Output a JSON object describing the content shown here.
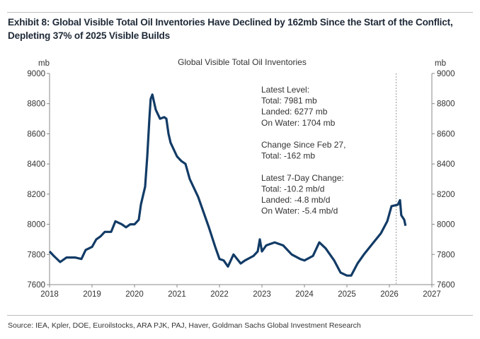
{
  "exhibit_title": "Exhibit 8: Global Visible Total Oil Inventories Have Declined by 162mb Since the Start of the Conflict, Depleting 37% of 2025 Visible Builds",
  "source": "Source: IEA, Kpler, DOE, Euroilstocks, ARA PJK, PAJ, Haver, Goldman Sachs Global Investment Research",
  "chart_data": {
    "type": "line",
    "title": "Global Visible Total Oil Inventories",
    "ylabel_left": "mb",
    "ylabel_right": "mb",
    "xlim": [
      2018,
      2027
    ],
    "ylim": [
      7600,
      9000
    ],
    "xticks": [
      "2018",
      "2019",
      "2020",
      "2021",
      "2022",
      "2023",
      "2024",
      "2025",
      "2026",
      "2027"
    ],
    "yticks": [
      "7600",
      "7800",
      "8000",
      "8200",
      "8400",
      "8600",
      "8800",
      "9000"
    ],
    "grid": false,
    "line_color": "#123b66",
    "marker_line_x": 2026.16,
    "annotations": [
      "Latest Level:",
      "Total: 7981 mb",
      "Landed: 6277 mb",
      "On Water: 1704 mb",
      "",
      "Change Since Feb 27,",
      "Total: -162 mb",
      "",
      "Latest 7-Day Change:",
      "Total: -10.2 mb/d",
      "Landed: -4.8 mb/d",
      "On Water: -5.4 mb/d"
    ],
    "series": [
      {
        "name": "Global Visible Total Oil Inventories",
        "x": [
          2018.0,
          2018.1,
          2018.25,
          2018.4,
          2018.6,
          2018.75,
          2018.85,
          2019.0,
          2019.1,
          2019.2,
          2019.3,
          2019.45,
          2019.55,
          2019.7,
          2019.8,
          2019.9,
          2020.0,
          2020.1,
          2020.15,
          2020.25,
          2020.3,
          2020.35,
          2020.38,
          2020.42,
          2020.5,
          2020.6,
          2020.7,
          2020.75,
          2020.8,
          2020.85,
          2021.0,
          2021.1,
          2021.2,
          2021.3,
          2021.5,
          2021.6,
          2021.75,
          2021.9,
          2022.0,
          2022.1,
          2022.2,
          2022.33,
          2022.5,
          2022.6,
          2022.8,
          2022.9,
          2022.95,
          2023.0,
          2023.1,
          2023.3,
          2023.5,
          2023.7,
          2023.9,
          2024.0,
          2024.2,
          2024.35,
          2024.5,
          2024.7,
          2024.85,
          2025.0,
          2025.1,
          2025.25,
          2025.4,
          2025.6,
          2025.8,
          2025.95,
          2026.05,
          2026.2,
          2026.25,
          2026.28,
          2026.35,
          2026.38
        ],
        "y": [
          7820,
          7790,
          7750,
          7780,
          7780,
          7770,
          7830,
          7850,
          7900,
          7920,
          7950,
          7950,
          8020,
          8000,
          7980,
          8000,
          8000,
          8030,
          8130,
          8250,
          8450,
          8700,
          8830,
          8860,
          8760,
          8700,
          8710,
          8700,
          8600,
          8540,
          8450,
          8420,
          8400,
          8300,
          8180,
          8100,
          7980,
          7850,
          7770,
          7760,
          7720,
          7800,
          7740,
          7760,
          7790,
          7820,
          7900,
          7820,
          7860,
          7880,
          7860,
          7800,
          7770,
          7760,
          7790,
          7880,
          7840,
          7760,
          7680,
          7660,
          7660,
          7740,
          7800,
          7870,
          7940,
          8020,
          8120,
          8130,
          8160,
          8060,
          8030,
          7990
        ]
      }
    ]
  }
}
